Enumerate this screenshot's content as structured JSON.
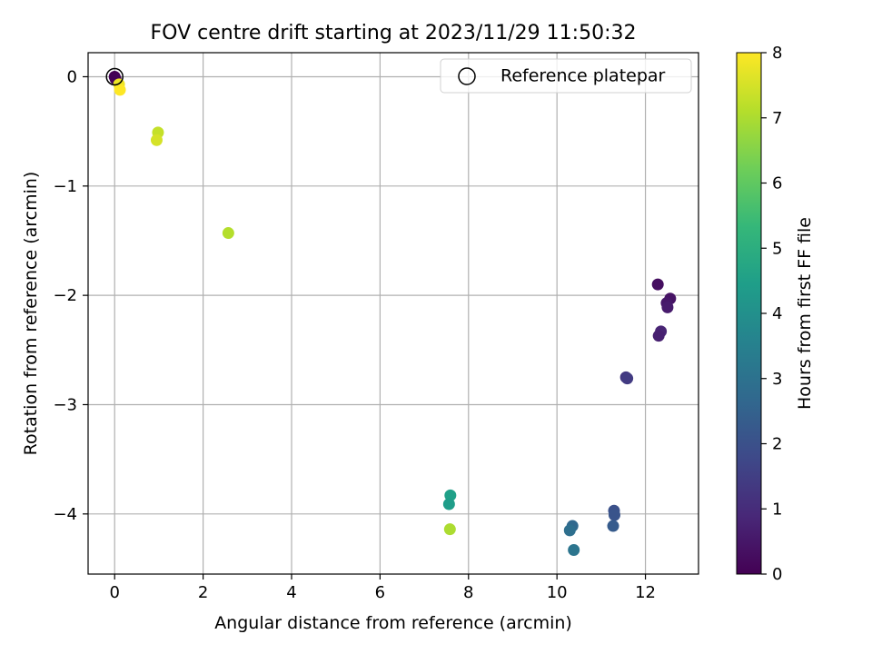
{
  "chart_data": {
    "type": "scatter",
    "title": "FOV centre drift starting at 2023/11/29 11:50:32",
    "xlabel": "Angular distance from reference (arcmin)",
    "ylabel": "Rotation from reference (arcmin)",
    "xlim": [
      -0.6,
      13.2
    ],
    "ylim": [
      -4.55,
      0.22
    ],
    "xticks": [
      0,
      2,
      4,
      6,
      8,
      10,
      12
    ],
    "xtick_labels": [
      "0",
      "2",
      "4",
      "6",
      "8",
      "10",
      "12"
    ],
    "yticks": [
      0,
      -1,
      -2,
      -3,
      -4
    ],
    "ytick_labels": [
      "0",
      "−1",
      "−2",
      "−3",
      "−4"
    ],
    "grid": true,
    "legend": {
      "position": "top-right",
      "entries": [
        {
          "label": "Reference platepar",
          "marker": "hollow-circle"
        }
      ]
    },
    "reference_point": {
      "x": 0,
      "y": 0
    },
    "colorbar": {
      "label": "Hours from first FF file",
      "min": 0,
      "max": 8,
      "ticks": [
        0,
        1,
        2,
        3,
        4,
        5,
        6,
        7,
        8
      ],
      "tick_labels": [
        "0",
        "1",
        "2",
        "3",
        "4",
        "5",
        "6",
        "7",
        "8"
      ],
      "colormap": "viridis",
      "stops": [
        "#440154",
        "#482878",
        "#3e4989",
        "#31688e",
        "#26828e",
        "#1f9e89",
        "#35b779",
        "#6ece58",
        "#b5de2b",
        "#fde725"
      ]
    },
    "points": [
      {
        "x": 0.0,
        "y": 0.0,
        "c": 0.0
      },
      {
        "x": 0.02,
        "y": -0.02,
        "c": 0.05
      },
      {
        "x": 12.28,
        "y": -1.9,
        "c": 0.3
      },
      {
        "x": 12.56,
        "y": -2.03,
        "c": 0.4
      },
      {
        "x": 12.48,
        "y": -2.07,
        "c": 0.5
      },
      {
        "x": 12.5,
        "y": -2.11,
        "c": 0.6
      },
      {
        "x": 12.35,
        "y": -2.33,
        "c": 0.8
      },
      {
        "x": 12.3,
        "y": -2.37,
        "c": 0.7
      },
      {
        "x": 11.56,
        "y": -2.75,
        "c": 1.3
      },
      {
        "x": 11.59,
        "y": -2.76,
        "c": 1.4
      },
      {
        "x": 11.29,
        "y": -3.97,
        "c": 2.0
      },
      {
        "x": 11.3,
        "y": -4.01,
        "c": 2.1
      },
      {
        "x": 11.27,
        "y": -4.11,
        "c": 2.3
      },
      {
        "x": 10.35,
        "y": -4.11,
        "c": 2.7
      },
      {
        "x": 10.29,
        "y": -4.15,
        "c": 2.9
      },
      {
        "x": 10.38,
        "y": -4.33,
        "c": 3.1
      },
      {
        "x": 7.59,
        "y": -3.83,
        "c": 4.5
      },
      {
        "x": 7.56,
        "y": -3.91,
        "c": 4.4
      },
      {
        "x": 7.58,
        "y": -4.14,
        "c": 7.0
      },
      {
        "x": 2.57,
        "y": -1.43,
        "c": 7.1
      },
      {
        "x": 0.98,
        "y": -0.51,
        "c": 7.3
      },
      {
        "x": 0.95,
        "y": -0.58,
        "c": 7.5
      },
      {
        "x": 0.1,
        "y": -0.07,
        "c": 7.8
      },
      {
        "x": 0.12,
        "y": -0.12,
        "c": 8.0
      }
    ]
  }
}
